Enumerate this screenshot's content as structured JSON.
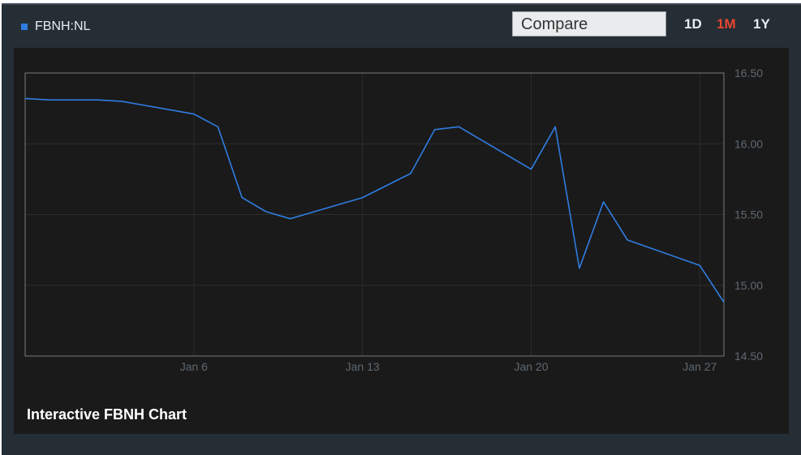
{
  "header": {
    "ticker": "FBNH:NL",
    "compare_placeholder": "Compare",
    "ranges": [
      "1D",
      "1M",
      "1Y"
    ],
    "active_range": "1M",
    "accent_color": "#e8462f",
    "series_color": "#2f7de1"
  },
  "caption": "Interactive FBNH Chart",
  "chart_data": {
    "type": "line",
    "title": "",
    "xlabel": "",
    "ylabel": "",
    "x_ticks": [
      "Jan 6",
      "Jan 13",
      "Jan 20",
      "Jan 27"
    ],
    "y_ticks": [
      "16.50",
      "16.00",
      "15.50",
      "15.00",
      "14.50"
    ],
    "ylim": [
      14.5,
      16.5
    ],
    "xlim": [
      "Dec 30",
      "Jan 28"
    ],
    "grid": true,
    "series": [
      {
        "values": [
          {
            "x": "Dec 30",
            "y": 16.32
          },
          {
            "x": "Dec 31",
            "y": 16.31
          },
          {
            "x": "Jan 2",
            "y": 16.31
          },
          {
            "x": "Jan 3",
            "y": 16.3
          },
          {
            "x": "Jan 6",
            "y": 16.21
          },
          {
            "x": "Jan 7",
            "y": 16.12
          },
          {
            "x": "Jan 8",
            "y": 15.62
          },
          {
            "x": "Jan 9",
            "y": 15.52
          },
          {
            "x": "Jan 10",
            "y": 15.47
          },
          {
            "x": "Jan 13",
            "y": 15.62
          },
          {
            "x": "Jan 15",
            "y": 15.79
          },
          {
            "x": "Jan 16",
            "y": 16.1
          },
          {
            "x": "Jan 17",
            "y": 16.12
          },
          {
            "x": "Jan 20",
            "y": 15.82
          },
          {
            "x": "Jan 21",
            "y": 16.12
          },
          {
            "x": "Jan 22",
            "y": 15.12
          },
          {
            "x": "Jan 23",
            "y": 15.59
          },
          {
            "x": "Jan 24",
            "y": 15.32
          },
          {
            "x": "Jan 27",
            "y": 15.14
          },
          {
            "x": "Jan 28",
            "y": 14.88
          }
        ]
      }
    ]
  }
}
